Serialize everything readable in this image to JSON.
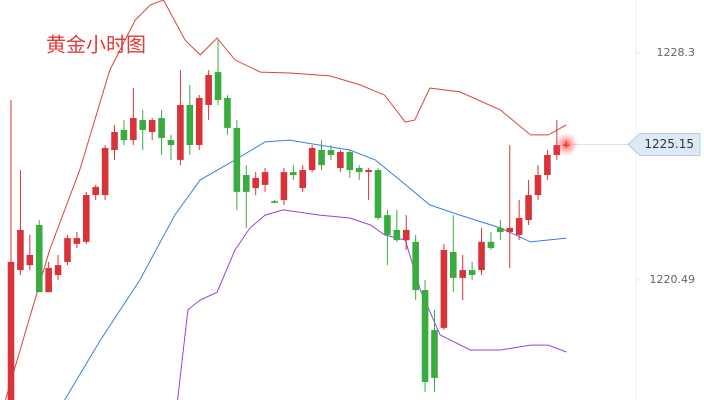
{
  "chart_data": {
    "type": "candlestick",
    "title": "黄金小时图",
    "up_color": "#d9333a",
    "down_color": "#3aab3f",
    "xlim": [
      -1.17,
      66.84
    ],
    "ylim": [
      1216.36,
      1230.12
    ],
    "yticks": [
      1228.3,
      1220.49
    ],
    "current": {
      "value": 1225.15,
      "label": "1225.15"
    },
    "open": [
      1216.36,
      1220.83,
      1221.0,
      1222.38,
      1220.07,
      1220.66,
      1221.11,
      1221.73,
      1221.8,
      1223.41,
      1223.41,
      1224.96,
      1225.65,
      1225.3,
      1225.99,
      1225.58,
      1226.06,
      1225.3,
      1224.62,
      1226.51,
      1225.13,
      1226.51,
      1227.64,
      1226.75,
      1225.72,
      1224.1,
      1223.65,
      1223.76,
      1223.2,
      1223.24,
      1224.2,
      1223.65,
      1224.27,
      1224.96,
      1224.96,
      1224.34,
      1224.89,
      1224.34,
      1224.2,
      1224.27,
      1222.72,
      1222.21,
      1221.86,
      1221.8,
      1220.14,
      1218.77,
      1218.84,
      1221.45,
      1220.56,
      1220.83,
      1220.83,
      1221.8,
      1222.28,
      1222.14,
      1222.04,
      1222.55,
      1223.41,
      1224.1,
      1224.79,
      1225.13
    ],
    "high": [
      1226.68,
      1224.27,
      1222.04,
      1222.55,
      1221.11,
      1221.35,
      1222.04,
      1222.14,
      1223.52,
      1223.76,
      1225.13,
      1225.82,
      1225.99,
      1227.09,
      1226.34,
      1226.06,
      1226.34,
      1225.48,
      1227.71,
      1227.2,
      1226.85,
      1227.71,
      1228.74,
      1226.85,
      1225.99,
      1224.44,
      1224.2,
      1224.34,
      1223.24,
      1224.34,
      1224.44,
      1224.44,
      1225.13,
      1225.3,
      1225.13,
      1224.96,
      1224.96,
      1224.44,
      1224.34,
      1224.34,
      1222.9,
      1222.9,
      1222.72,
      1222.04,
      1220.49,
      1219.46,
      1221.73,
      1222.72,
      1221.35,
      1221.11,
      1222.28,
      1222.14,
      1222.55,
      1225.13,
      1223.24,
      1223.93,
      1224.44,
      1224.96,
      1225.99,
      1225.3
    ],
    "low": [
      1216.36,
      1220.66,
      1220.83,
      1220.07,
      1220.07,
      1220.49,
      1221.0,
      1221.59,
      1221.73,
      1223.24,
      1223.24,
      1224.62,
      1225.13,
      1225.13,
      1224.96,
      1225.3,
      1224.79,
      1224.62,
      1224.44,
      1224.79,
      1224.96,
      1225.99,
      1226.51,
      1225.48,
      1222.9,
      1222.28,
      1223.41,
      1223.52,
      1223.14,
      1223.07,
      1223.93,
      1223.52,
      1224.2,
      1224.27,
      1224.62,
      1224.2,
      1224.0,
      1223.93,
      1223.24,
      1222.55,
      1221.0,
      1221.8,
      1221.52,
      1219.8,
      1216.63,
      1216.63,
      1218.77,
      1220.07,
      1219.8,
      1220.49,
      1220.66,
      1221.52,
      1221.86,
      1220.9,
      1221.86,
      1222.38,
      1223.24,
      1223.93,
      1224.62,
      1225.03
    ],
    "close": [
      1221.11,
      1222.21,
      1221.35,
      1220.07,
      1220.9,
      1221.0,
      1221.93,
      1221.93,
      1223.41,
      1223.69,
      1225.03,
      1225.58,
      1225.3,
      1226.06,
      1225.65,
      1225.99,
      1225.37,
      1225.13,
      1226.51,
      1225.13,
      1226.75,
      1227.54,
      1226.68,
      1225.72,
      1223.52,
      1223.52,
      1224.0,
      1224.2,
      1223.14,
      1224.2,
      1224.1,
      1224.27,
      1225.03,
      1224.44,
      1224.79,
      1224.89,
      1224.27,
      1224.2,
      1224.27,
      1222.62,
      1222.04,
      1221.86,
      1222.21,
      1220.14,
      1216.98,
      1217.12,
      1221.52,
      1220.56,
      1220.83,
      1220.66,
      1221.8,
      1221.59,
      1222.14,
      1222.28,
      1222.62,
      1223.41,
      1224.1,
      1224.79,
      1225.13,
      1225.15
    ],
    "bands": [
      {
        "color": "#d9453c",
        "x": [
          -0.6,
          4.1,
          7.3,
          10.5,
          13.2,
          14.8,
          16.2,
          18.5,
          20.1,
          21.9,
          23.8,
          26.5,
          29.6,
          33.9,
          37.1,
          39.7,
          41.9,
          42.9,
          44.5,
          47.7,
          52.0,
          55.2,
          57.1,
          59
        ],
        "values": [
          1216.36,
          1221.52,
          1224.27,
          1227.71,
          1229.43,
          1229.95,
          1230.12,
          1228.74,
          1228.23,
          1228.81,
          1228.06,
          1227.64,
          1227.61,
          1227.51,
          1227.2,
          1226.85,
          1225.92,
          1225.99,
          1227.09,
          1226.96,
          1226.34,
          1225.48,
          1225.48,
          1225.82
        ]
      },
      {
        "color": "#3b7fe0",
        "x": [
          5.7,
          9.5,
          13.7,
          17.4,
          20.1,
          23.8,
          27.0,
          29.6,
          32.8,
          36.0,
          38.7,
          41.3,
          44.5,
          47.7,
          52.0,
          55.2,
          59
        ],
        "values": [
          1216.36,
          1218.42,
          1220.49,
          1222.72,
          1223.93,
          1224.62,
          1225.24,
          1225.3,
          1225.13,
          1224.96,
          1224.62,
          1223.93,
          1223.07,
          1222.72,
          1222.28,
          1221.8,
          1221.93
        ]
      },
      {
        "color": "#9a44d6",
        "x": [
          17.7,
          18.8,
          20.1,
          21.9,
          23.8,
          25.4,
          27.0,
          28.9,
          32.8,
          36.0,
          38.2,
          39.7,
          41.9,
          43.5,
          45.6,
          48.8,
          52.0,
          55.2,
          57.1,
          59
        ],
        "values": [
          1216.36,
          1219.46,
          1219.8,
          1220.07,
          1221.52,
          1222.28,
          1222.72,
          1222.9,
          1222.72,
          1222.62,
          1222.38,
          1222.04,
          1221.86,
          1220.14,
          1218.6,
          1218.08,
          1218.08,
          1218.25,
          1218.25,
          1218.01
        ]
      }
    ]
  }
}
